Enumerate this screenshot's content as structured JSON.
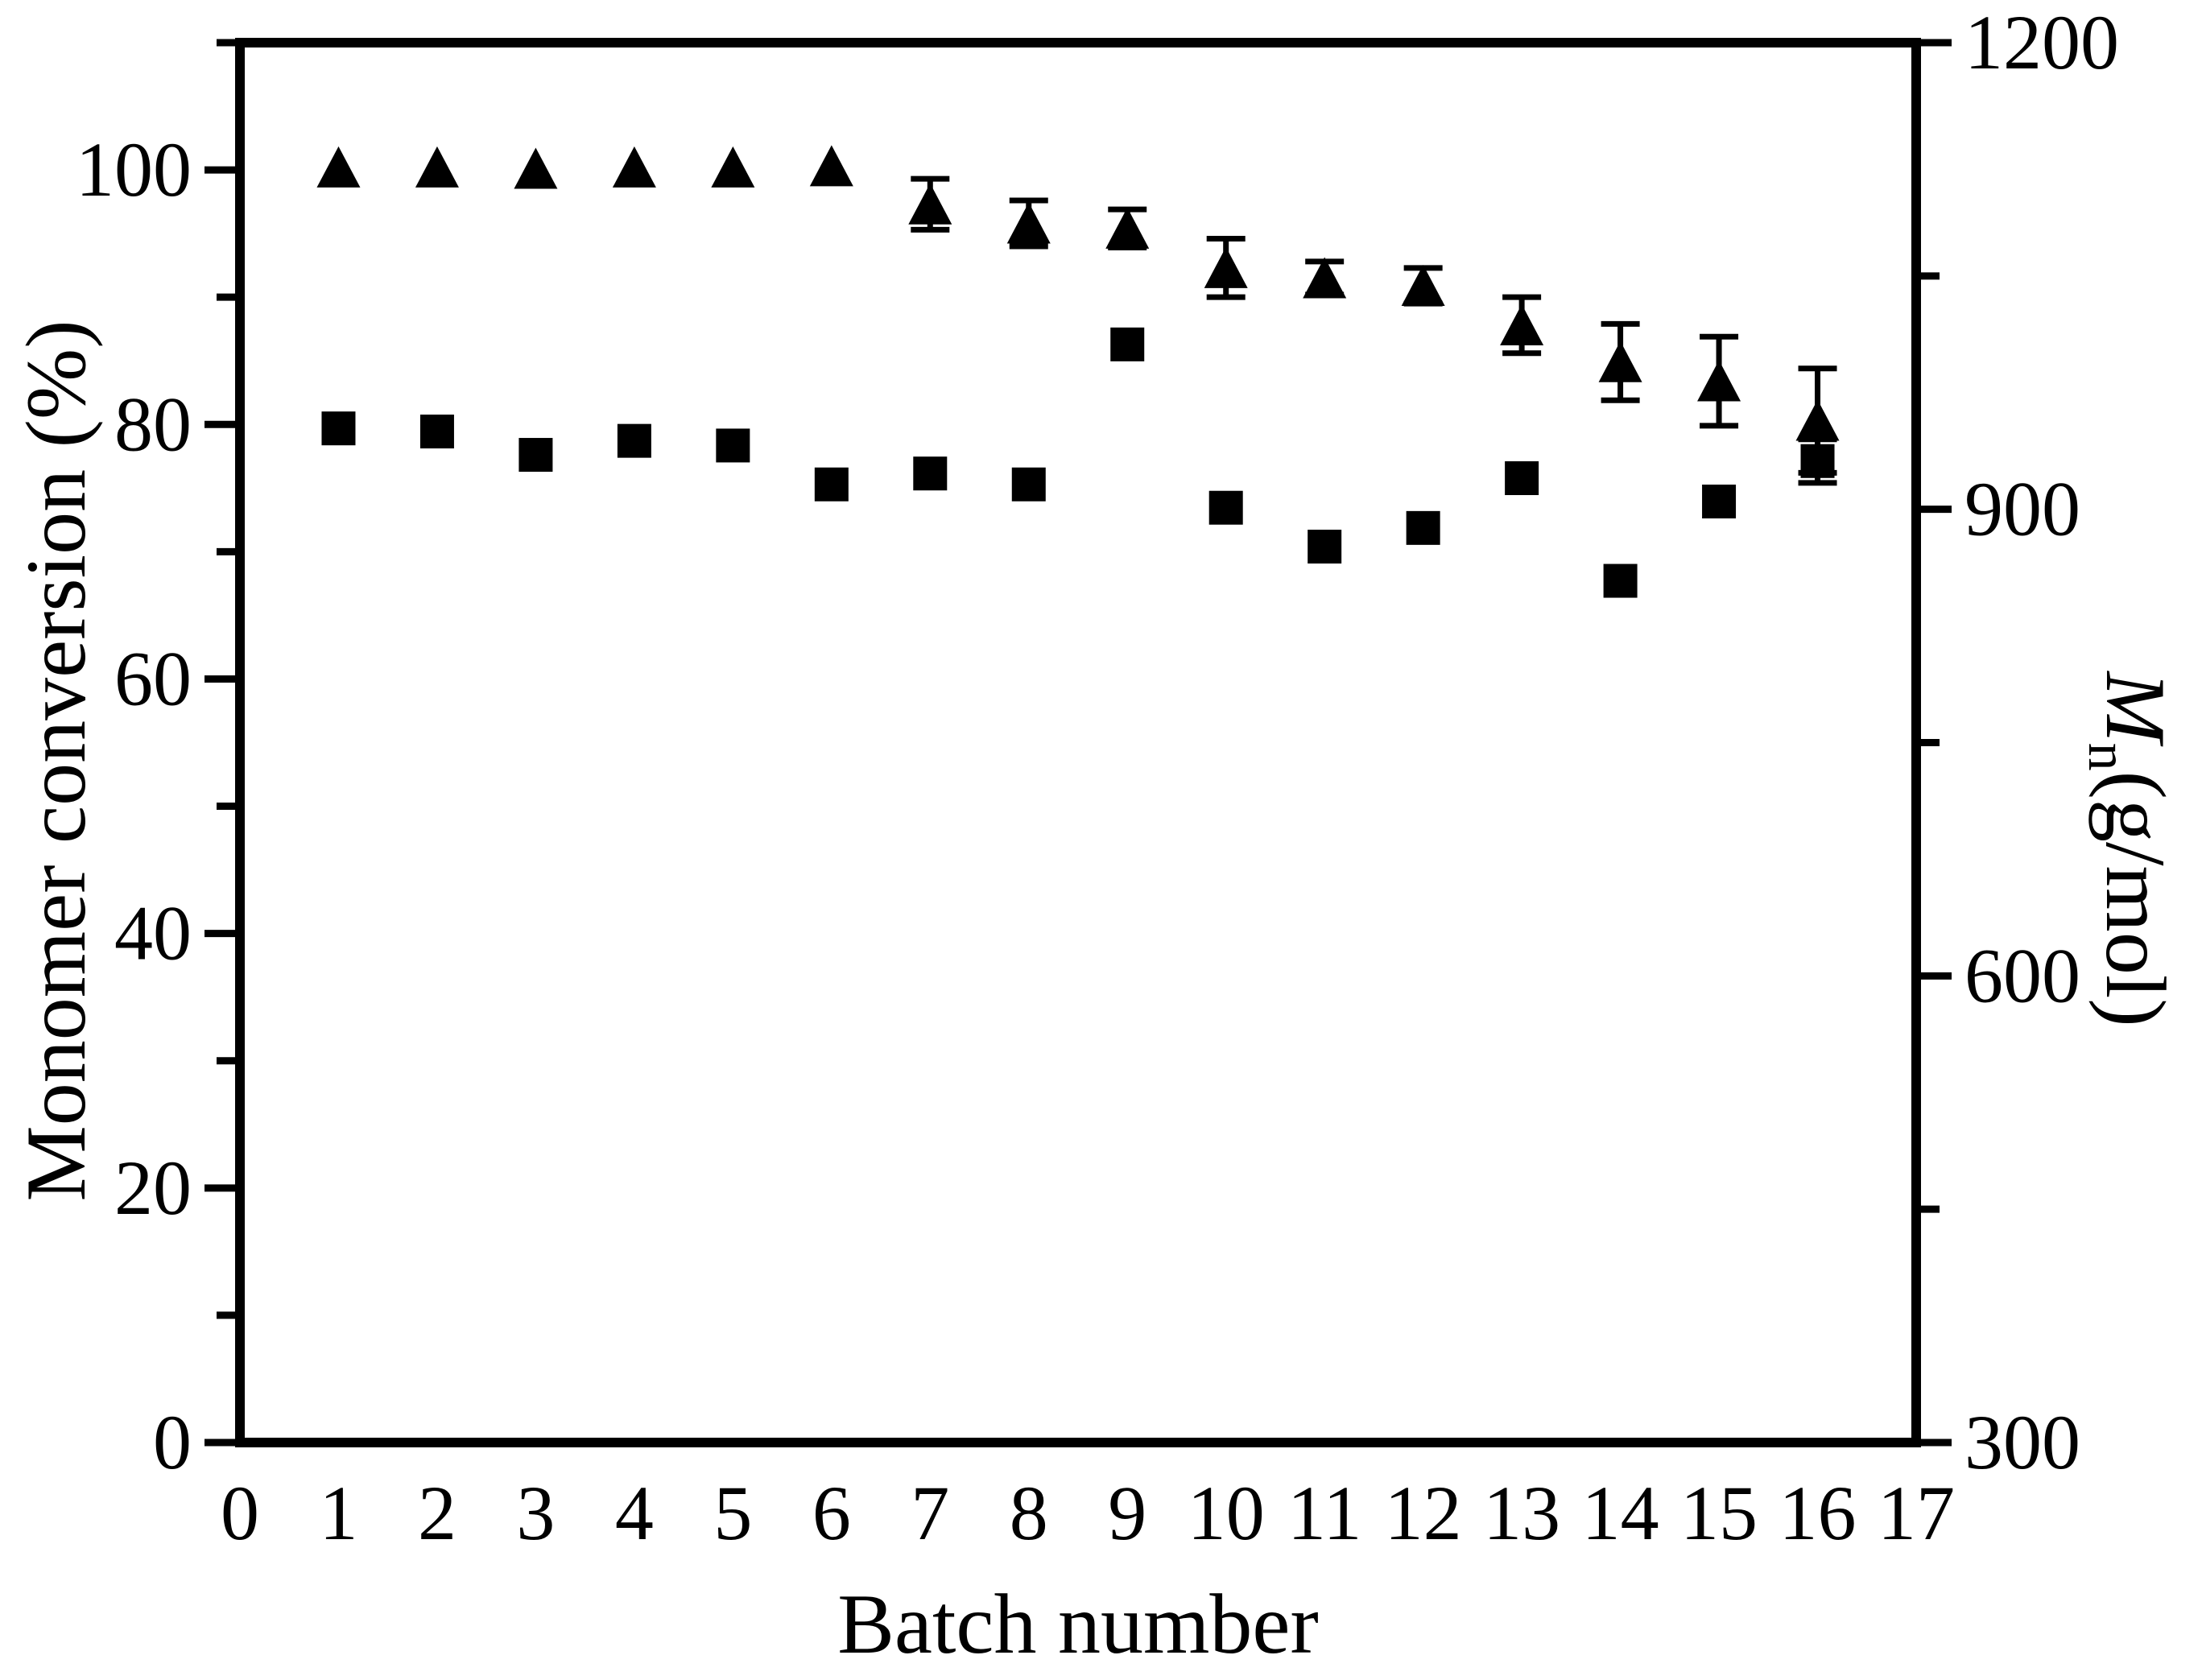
{
  "colors": {
    "foreground": "#000000",
    "background": "#ffffff"
  },
  "axis_titles": {
    "left": "Monomer conversion (%)",
    "bottom": "Batch number",
    "right_symbol": "M",
    "right_subscript": "n",
    "right_units": "(g/mol)"
  },
  "chart_data": {
    "type": "scatter",
    "title": "",
    "xlabel": "Batch number",
    "ylabel_left": "Monomer conversion (%)",
    "ylabel_right": "Mn (g/mol)",
    "grid": false,
    "legend_position": "none",
    "xlim": [
      0,
      17
    ],
    "x_major_ticks": [
      0,
      1,
      2,
      3,
      4,
      5,
      6,
      7,
      8,
      9,
      10,
      11,
      12,
      13,
      14,
      15,
      16,
      17
    ],
    "ylim_left": [
      0,
      110
    ],
    "left_major_ticks": [
      0,
      20,
      40,
      60,
      80,
      100
    ],
    "left_minor_ticks": [
      10,
      30,
      50,
      70,
      90,
      110
    ],
    "ylim_right": [
      300,
      1200
    ],
    "right_major_ticks": [
      300,
      600,
      900,
      1200
    ],
    "right_minor_ticks": [
      450,
      750,
      1050
    ],
    "series": [
      {
        "name": "Monomer conversion",
        "axis": "left",
        "marker": "triangle",
        "color": "#000000",
        "x": [
          1,
          2,
          3,
          4,
          5,
          6,
          7,
          8,
          9,
          10,
          11,
          12,
          13,
          14,
          15,
          16
        ],
        "y": [
          100.2,
          100.2,
          100.1,
          100.2,
          100.2,
          100.3,
          97.3,
          95.8,
          95.4,
          92.3,
          91.5,
          90.9,
          87.8,
          84.9,
          83.4,
          80.3
        ],
        "yerr": [
          0,
          0,
          0,
          0,
          0,
          0,
          2.0,
          1.8,
          1.5,
          2.3,
          1.3,
          1.4,
          2.2,
          3.0,
          3.5,
          4.1
        ]
      },
      {
        "name": "Mn",
        "axis": "right",
        "marker": "square",
        "color": "#000000",
        "x": [
          1,
          2,
          3,
          4,
          5,
          6,
          7,
          8,
          9,
          10,
          11,
          12,
          13,
          14,
          15,
          16
        ],
        "y": [
          952,
          950,
          935,
          944,
          941,
          916,
          923,
          916,
          1006,
          901,
          876,
          888,
          920,
          854,
          905,
          931
        ],
        "yerr": [
          0,
          0,
          0,
          0,
          0,
          0,
          0,
          0,
          0,
          0,
          0,
          0,
          0,
          0,
          0,
          14
        ]
      }
    ]
  }
}
